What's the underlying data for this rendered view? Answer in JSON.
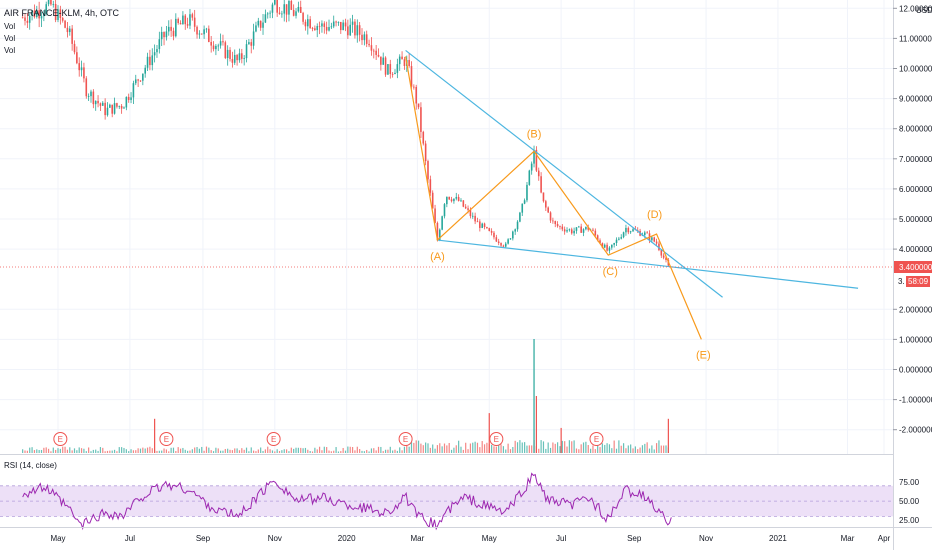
{
  "header": {
    "title": "AIR FRANCE-KLM, 4h, OTC",
    "indicators": [
      "Vol",
      "Vol",
      "Vol"
    ],
    "currency": "USD"
  },
  "price_axis": {
    "ticks": [
      {
        "v": 12,
        "label": "12.000000"
      },
      {
        "v": 11,
        "label": "11.000000"
      },
      {
        "v": 10,
        "label": "10.000000"
      },
      {
        "v": 9,
        "label": "9.000000"
      },
      {
        "v": 8,
        "label": "8.000000"
      },
      {
        "v": 7,
        "label": "7.000000"
      },
      {
        "v": 6,
        "label": "6.000000"
      },
      {
        "v": 5,
        "label": "5.000000"
      },
      {
        "v": 4,
        "label": "4.000000"
      },
      {
        "v": 2,
        "label": "2.000000"
      },
      {
        "v": 1,
        "label": "1.000000"
      },
      {
        "v": 0,
        "label": "0.000000"
      },
      {
        "v": -1,
        "label": "-1.000000"
      },
      {
        "v": -2,
        "label": "-2.000000"
      }
    ],
    "last_price_label": "3.400000",
    "last_price": 3.4,
    "countdown_label": "58:09",
    "countdown_prefix": "3."
  },
  "time_axis": [
    {
      "t": "2019-05-01",
      "label": "May"
    },
    {
      "t": "2019-07-01",
      "label": "Jul"
    },
    {
      "t": "2019-09-01",
      "label": "Sep"
    },
    {
      "t": "2019-11-01",
      "label": "Nov"
    },
    {
      "t": "2020-01-01",
      "label": "2020"
    },
    {
      "t": "2020-03-01",
      "label": "Mar"
    },
    {
      "t": "2020-05-01",
      "label": "May"
    },
    {
      "t": "2020-07-01",
      "label": "Jul"
    },
    {
      "t": "2020-09-01",
      "label": "Sep"
    },
    {
      "t": "2020-11-01",
      "label": "Nov"
    },
    {
      "t": "2021-01-01",
      "label": "2021"
    },
    {
      "t": "2021-03-01",
      "label": "Mar"
    },
    {
      "t": "2021-04-01",
      "label": "Apr"
    }
  ],
  "rsi": {
    "title": "RSI (14, close)",
    "ticks": [
      {
        "v": 75,
        "label": "75.00"
      },
      {
        "v": 50,
        "label": "50.00"
      },
      {
        "v": 25,
        "label": "25.00"
      }
    ],
    "band_upper": 70,
    "band_lower": 30
  },
  "earnings_markers": [
    "2019-05-03",
    "2019-08-01",
    "2019-10-31",
    "2020-02-20",
    "2020-05-07",
    "2020-07-31"
  ],
  "earnings_label": "E",
  "colors": {
    "up": "#26a69a",
    "down": "#ef5350",
    "trendline": "#4db6e0",
    "wave": "#f89a1c",
    "rsi_line": "#9c27b0",
    "rsi_band": "#ede0f7",
    "last_price_bg": "#ef5350"
  },
  "chart_data": {
    "type": "candlestick",
    "price_close_path": [
      {
        "t": "2019-04-01",
        "p": 11.7
      },
      {
        "t": "2019-04-25",
        "p": 12.1
      },
      {
        "t": "2019-05-10",
        "p": 11.2
      },
      {
        "t": "2019-05-25",
        "p": 9.3
      },
      {
        "t": "2019-06-10",
        "p": 8.6
      },
      {
        "t": "2019-06-25",
        "p": 8.8
      },
      {
        "t": "2019-07-10",
        "p": 9.8
      },
      {
        "t": "2019-08-01",
        "p": 11.2
      },
      {
        "t": "2019-08-20",
        "p": 11.6
      },
      {
        "t": "2019-09-10",
        "p": 10.9
      },
      {
        "t": "2019-10-01",
        "p": 10.2
      },
      {
        "t": "2019-10-20",
        "p": 11.5
      },
      {
        "t": "2019-11-01",
        "p": 12.2
      },
      {
        "t": "2019-11-20",
        "p": 11.8
      },
      {
        "t": "2019-12-10",
        "p": 11.4
      },
      {
        "t": "2020-01-01",
        "p": 11.4
      },
      {
        "t": "2020-01-20",
        "p": 11.0
      },
      {
        "t": "2020-02-05",
        "p": 9.9
      },
      {
        "t": "2020-02-20",
        "p": 10.3
      },
      {
        "t": "2020-03-01",
        "p": 8.8
      },
      {
        "t": "2020-03-10",
        "p": 6.3
      },
      {
        "t": "2020-03-18",
        "p": 4.3
      },
      {
        "t": "2020-03-25",
        "p": 5.8
      },
      {
        "t": "2020-04-05",
        "p": 5.6
      },
      {
        "t": "2020-04-20",
        "p": 4.9
      },
      {
        "t": "2020-05-05",
        "p": 4.4
      },
      {
        "t": "2020-05-15",
        "p": 4.1
      },
      {
        "t": "2020-05-28",
        "p": 5.2
      },
      {
        "t": "2020-06-08",
        "p": 7.2
      },
      {
        "t": "2020-06-15",
        "p": 5.6
      },
      {
        "t": "2020-06-25",
        "p": 4.8
      },
      {
        "t": "2020-07-10",
        "p": 4.6
      },
      {
        "t": "2020-07-25",
        "p": 4.7
      },
      {
        "t": "2020-08-10",
        "p": 3.9
      },
      {
        "t": "2020-08-25",
        "p": 4.7
      },
      {
        "t": "2020-09-10",
        "p": 4.5
      },
      {
        "t": "2020-09-20",
        "p": 4.2
      },
      {
        "t": "2020-09-30",
        "p": 3.4
      }
    ],
    "volume_spikes": [
      {
        "t": "2020-06-08",
        "v": 1.0
      },
      {
        "t": "2020-06-10",
        "v": 0.5
      },
      {
        "t": "2020-05-01",
        "v": 0.35
      },
      {
        "t": "2019-07-22",
        "v": 0.3
      },
      {
        "t": "2020-09-30",
        "v": 0.3
      },
      {
        "t": "2020-07-01",
        "v": 0.22
      }
    ],
    "rsi_path": [
      {
        "t": "2019-04-01",
        "v": 60
      },
      {
        "t": "2019-04-20",
        "v": 68
      },
      {
        "t": "2019-05-10",
        "v": 40
      },
      {
        "t": "2019-05-20",
        "v": 18
      },
      {
        "t": "2019-06-10",
        "v": 35
      },
      {
        "t": "2019-06-25",
        "v": 30
      },
      {
        "t": "2019-07-10",
        "v": 55
      },
      {
        "t": "2019-08-01",
        "v": 72
      },
      {
        "t": "2019-08-20",
        "v": 65
      },
      {
        "t": "2019-09-10",
        "v": 40
      },
      {
        "t": "2019-10-01",
        "v": 30
      },
      {
        "t": "2019-10-20",
        "v": 60
      },
      {
        "t": "2019-11-01",
        "v": 78
      },
      {
        "t": "2019-11-20",
        "v": 50
      },
      {
        "t": "2019-12-10",
        "v": 55
      },
      {
        "t": "2020-01-01",
        "v": 45
      },
      {
        "t": "2020-01-20",
        "v": 40
      },
      {
        "t": "2020-02-05",
        "v": 35
      },
      {
        "t": "2020-02-20",
        "v": 55
      },
      {
        "t": "2020-03-01",
        "v": 30
      },
      {
        "t": "2020-03-18",
        "v": 18
      },
      {
        "t": "2020-03-25",
        "v": 35
      },
      {
        "t": "2020-04-10",
        "v": 55
      },
      {
        "t": "2020-04-25",
        "v": 45
      },
      {
        "t": "2020-05-15",
        "v": 35
      },
      {
        "t": "2020-05-28",
        "v": 60
      },
      {
        "t": "2020-06-08",
        "v": 85
      },
      {
        "t": "2020-06-20",
        "v": 50
      },
      {
        "t": "2020-07-10",
        "v": 45
      },
      {
        "t": "2020-07-25",
        "v": 55
      },
      {
        "t": "2020-08-10",
        "v": 25
      },
      {
        "t": "2020-08-25",
        "v": 65
      },
      {
        "t": "2020-09-10",
        "v": 55
      },
      {
        "t": "2020-09-20",
        "v": 40
      },
      {
        "t": "2020-09-30",
        "v": 20
      },
      {
        "t": "2020-10-03",
        "v": 25
      }
    ],
    "trendlines": [
      {
        "name": "upper",
        "from": {
          "t": "2020-02-20",
          "p": 10.6
        },
        "to": {
          "t": "2020-11-15",
          "p": 2.4
        }
      },
      {
        "name": "lower",
        "from": {
          "t": "2020-03-18",
          "p": 4.3
        },
        "to": {
          "t": "2021-03-10",
          "p": 2.7
        }
      }
    ],
    "wave_points": [
      {
        "label": "",
        "t": "2020-02-20",
        "p": 10.4
      },
      {
        "label": "(A)",
        "t": "2020-03-18",
        "p": 4.3
      },
      {
        "label": "(B)",
        "t": "2020-06-08",
        "p": 7.25
      },
      {
        "label": "(C)",
        "t": "2020-08-10",
        "p": 3.8
      },
      {
        "label": "(D)",
        "t": "2020-09-20",
        "p": 4.5
      },
      {
        "label": "(E)",
        "t": "2020-10-28",
        "p": 1.0
      }
    ]
  }
}
